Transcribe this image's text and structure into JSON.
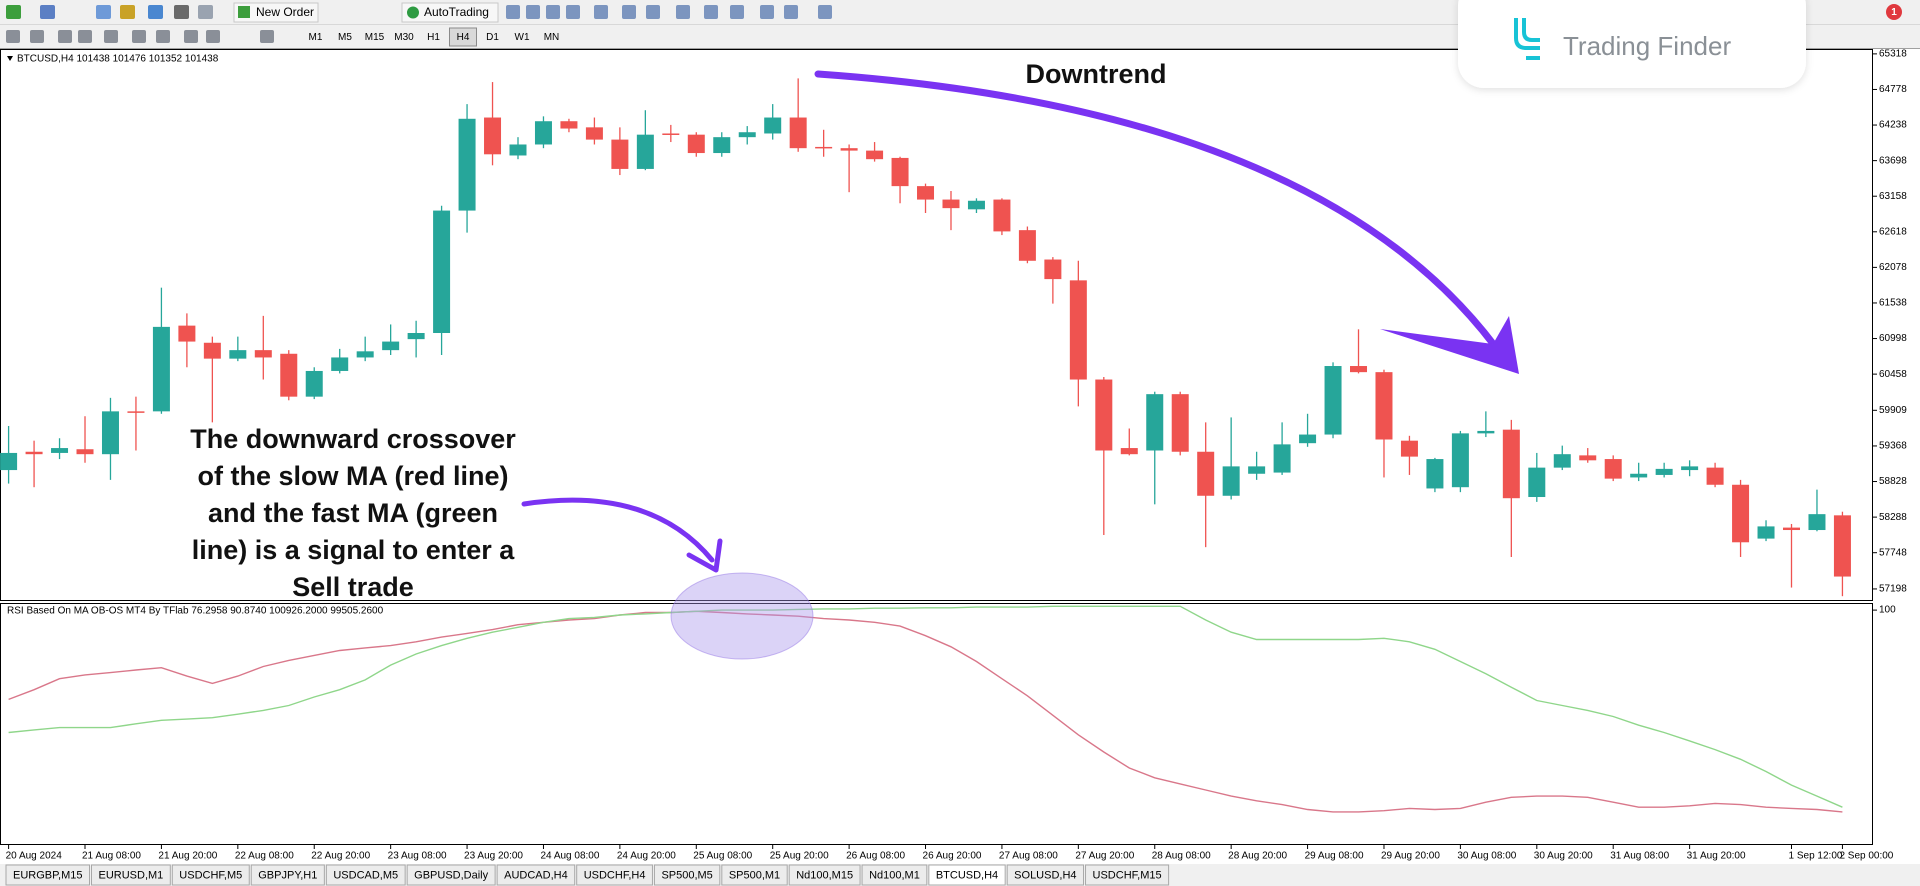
{
  "toolbar": {
    "buttons": [
      "New Order",
      "AutoTrading"
    ],
    "timeframes": [
      "M1",
      "M5",
      "M15",
      "M30",
      "H1",
      "H4",
      "D1",
      "W1",
      "MN"
    ],
    "active_timeframe": 5
  },
  "watermark": "Trading Finder",
  "tabs": [
    "EURGBP,M15",
    "EURUSD,M1",
    "USDCHF,M5",
    "GBPJPY,H1",
    "USDCAD,M5",
    "GBPUSD,Daily",
    "AUDCAD,H4",
    "USDCHF,H4",
    "SP500,M5",
    "SP500,M1",
    "Nd100,M15",
    "Nd100,M1",
    "BTCUSD,H4",
    "SOLUSD,H4",
    "USDCHF,M15"
  ],
  "active_tab": 12,
  "chart_data": [
    {
      "type": "candlestick",
      "title": "BTCUSD,H4 101438 101476 101352 101438",
      "categories": [
        "20 Aug 2024",
        null,
        null,
        "21 Aug 08:00",
        null,
        null,
        "21 Aug 20:00",
        null,
        null,
        "22 Aug 08:00",
        null,
        null,
        "22 Aug 20:00",
        null,
        null,
        "23 Aug 08:00",
        null,
        null,
        "23 Aug 20:00",
        null,
        null,
        "24 Aug 08:00",
        null,
        null,
        "24 Aug 20:00",
        null,
        null,
        "25 Aug 08:00",
        null,
        null,
        "25 Aug 20:00",
        null,
        null,
        "26 Aug 08:00",
        null,
        null,
        "26 Aug 20:00",
        null,
        null,
        "27 Aug 08:00",
        null,
        null,
        "27 Aug 20:00",
        null,
        null,
        "28 Aug 08:00",
        null,
        null,
        "28 Aug 20:00",
        null,
        null,
        "29 Aug 08:00",
        null,
        null,
        "29 Aug 20:00",
        null,
        null,
        "30 Aug 08:00",
        null,
        null,
        "30 Aug 20:00",
        null,
        null,
        "31 Aug 08:00",
        null,
        null,
        "31 Aug 20:00",
        null,
        null,
        null,
        "1 Sep 12:00",
        null,
        "2 Sep 00:00"
      ],
      "open": [
        59002,
        59280,
        59262,
        59318,
        59243,
        59893,
        59893,
        61194,
        60934,
        60693,
        60822,
        60767,
        60116,
        60506,
        60711,
        60822,
        60989,
        61082,
        62940,
        64352,
        63776,
        63943,
        64296,
        64203,
        64017,
        63572,
        64110,
        64092,
        63813,
        64054,
        64110,
        64352,
        63906,
        63887,
        63850,
        63739,
        63311,
        63107,
        62959,
        63107,
        62643,
        62197,
        61881,
        60376,
        59336,
        59299,
        60154,
        59280,
        58612,
        58946,
        58964,
        59410,
        59541,
        60581,
        60488,
        59448,
        58723,
        58742,
        59559,
        59615,
        58593,
        59039,
        59225,
        59169,
        58890,
        58928,
        59002,
        59039,
        58779,
        57962,
        58129,
        58092,
        58315
      ],
      "high": [
        59671,
        59448,
        59485,
        59819,
        60098,
        60116,
        61770,
        61380,
        61027,
        61027,
        61342,
        60822,
        60562,
        60841,
        61027,
        61212,
        61268,
        63014,
        64556,
        64890,
        64054,
        64370,
        64333,
        64352,
        64203,
        64463,
        64240,
        64129,
        64129,
        64222,
        64556,
        64946,
        64166,
        63943,
        63980,
        63757,
        63349,
        63237,
        63126,
        63126,
        62698,
        62234,
        62178,
        60414,
        59633,
        60191,
        60191,
        59726,
        59801,
        59280,
        59726,
        59856,
        60637,
        61138,
        60525,
        59522,
        59187,
        59596,
        59893,
        59763,
        59262,
        59373,
        59336,
        59225,
        59113,
        59113,
        59150,
        59113,
        58853,
        58240,
        58184,
        58705,
        58370
      ],
      "low": [
        58797,
        58742,
        59169,
        59113,
        58853,
        59299,
        59856,
        60562,
        59726,
        60655,
        60376,
        60061,
        60079,
        60469,
        60655,
        60748,
        60711,
        60748,
        62606,
        63627,
        63720,
        63887,
        64129,
        63943,
        63479,
        63553,
        63980,
        63757,
        63757,
        63943,
        64017,
        63832,
        63757,
        63219,
        63683,
        63051,
        62903,
        62643,
        62903,
        62568,
        62141,
        61528,
        59968,
        58017,
        59225,
        58482,
        59225,
        57832,
        58556,
        58853,
        58928,
        59355,
        59485,
        60469,
        58890,
        58928,
        58667,
        58667,
        59503,
        57683,
        58519,
        59002,
        59113,
        58835,
        58835,
        58890,
        58909,
        58742,
        57683,
        57924,
        57219,
        58073,
        57088
      ],
      "close": [
        59262,
        59243,
        59336,
        59243,
        59893,
        59874,
        61175,
        60952,
        60693,
        60822,
        60711,
        60116,
        60506,
        60711,
        60804,
        60952,
        61082,
        62940,
        64333,
        63794,
        63943,
        64296,
        64185,
        64017,
        63572,
        64092,
        64103,
        63813,
        64054,
        64129,
        64352,
        63887,
        63887,
        63850,
        63720,
        63311,
        63107,
        62977,
        63089,
        62624,
        62178,
        61900,
        60376,
        59299,
        59243,
        60154,
        59280,
        58612,
        59058,
        59058,
        59392,
        59541,
        60581,
        60488,
        59466,
        59206,
        59169,
        59559,
        59596,
        58575,
        59039,
        59243,
        59150,
        58872,
        58946,
        59020,
        59058,
        58779,
        57906,
        58147,
        58092,
        58333,
        57386
      ],
      "up_color": "#26a69a",
      "down_color": "#ef5350",
      "ylim": [
        57015,
        65392
      ],
      "yticks": [
        65318,
        64778,
        64238,
        63698,
        63158,
        62618,
        62078,
        61538,
        60998,
        60458,
        59909,
        59368,
        58828,
        58288,
        57748,
        57198
      ],
      "grid": false,
      "annotation": "Downtrend",
      "note": [
        "The downward crossover",
        "of the slow MA (red line)",
        "and the fast MA (green",
        "line) is a signal to enter a",
        "Sell trade"
      ]
    },
    {
      "type": "line",
      "title": "RSI Based On MA OB-OS MT4 By TFlab 76.2958 90.8740 100926.2000 99505.2600",
      "series": [
        {
          "color": "#d9778a",
          "values": [
            62.0,
            66.1,
            70.8,
            72.4,
            73.4,
            74.5,
            75.5,
            71.9,
            68.8,
            71.9,
            76.0,
            78.6,
            80.7,
            82.8,
            83.9,
            84.9,
            86.5,
            88.5,
            90.1,
            91.7,
            93.8,
            94.8,
            95.8,
            96.4,
            97.9,
            99.0,
            99.0,
            99.5,
            99.0,
            98.4,
            97.9,
            97.4,
            96.4,
            95.8,
            94.8,
            93.2,
            89.1,
            84.4,
            78.1,
            70.8,
            63.5,
            55.2,
            46.9,
            39.6,
            32.8,
            28.6,
            26.0,
            23.4,
            20.8,
            18.8,
            17.2,
            15.1,
            14.1,
            14.1,
            14.6,
            15.6,
            15.1,
            15.6,
            18.2,
            20.3,
            20.8,
            20.8,
            20.3,
            18.2,
            16.1,
            16.1,
            16.7,
            17.7,
            17.2,
            16.1,
            15.6,
            15.1,
            14.1
          ]
        },
        {
          "color": "#8fd68a",
          "values": [
            47.9,
            49.0,
            50.0,
            50.0,
            50.0,
            51.6,
            53.1,
            53.6,
            54.2,
            55.7,
            57.3,
            59.4,
            63.0,
            66.1,
            70.3,
            76.6,
            81.3,
            84.9,
            88.0,
            90.6,
            92.7,
            94.8,
            96.4,
            96.9,
            97.9,
            98.4,
            99.0,
            99.5,
            100,
            100,
            100,
            100.3,
            100.5,
            100.5,
            100.8,
            100.8,
            101.0,
            101.0,
            101.3,
            101.3,
            101.3,
            101.6,
            101.6,
            101.6,
            101.6,
            101.6,
            101.6,
            95.8,
            90.6,
            87.5,
            87.5,
            87.5,
            87.5,
            87.5,
            88.0,
            86.5,
            83.3,
            78.1,
            72.9,
            67.2,
            61.5,
            59.4,
            57.3,
            54.7,
            51.0,
            47.9,
            44.3,
            40.6,
            36.5,
            31.3,
            25.5,
            20.8,
            16.1
          ]
        }
      ],
      "ylim": [
        0,
        102.6
      ],
      "yticks": [
        100
      ],
      "grid": false
    }
  ]
}
